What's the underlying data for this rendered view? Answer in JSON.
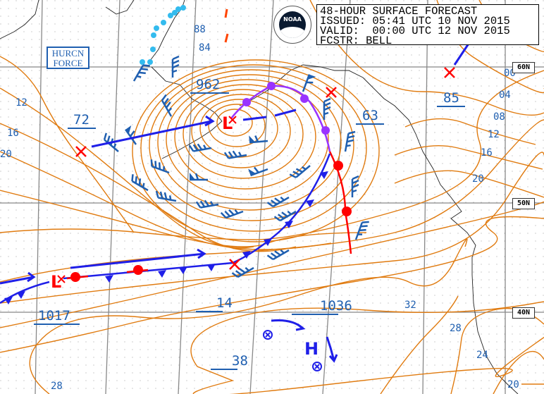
{
  "header": {
    "line1": "48-HOUR SURFACE FORECAST",
    "line2": "ISSUED: 05:41 UTC 10 NOV 2015",
    "line3": "VALID:  00:00 UTC 12 NOV 2015",
    "line4": "FCSTR: BELL"
  },
  "logo": {
    "text": "NOAA",
    "icon": "noaa-logo"
  },
  "hurricane_force_label": {
    "line1": "HURCN",
    "line2": "FORCE"
  },
  "latitude_labels": [
    "60N",
    "50N",
    "40N"
  ],
  "pressure_centers": [
    {
      "type": "L",
      "value": "962"
    },
    {
      "type": "L",
      "value": "1017"
    },
    {
      "type": "H",
      "value": "1036"
    }
  ],
  "forecast_values": [
    "72",
    "63",
    "85",
    "14",
    "38"
  ],
  "isobar_labels": [
    "88",
    "84",
    "12",
    "16",
    "20",
    "00",
    "04",
    "08",
    "12",
    "16",
    "20",
    "32",
    "28",
    "24",
    "20",
    "28"
  ],
  "colors": {
    "isobar": "#e07b10",
    "text": "#1f5fb0",
    "cold_front": "#1f1fe8",
    "warm_front": "#ff0000",
    "occluded_front": "#9933ff",
    "low_symbol": "#ff0000",
    "high_symbol": "#1f1fe8",
    "ice_edge": "#33bbee",
    "grid": "#888888"
  }
}
